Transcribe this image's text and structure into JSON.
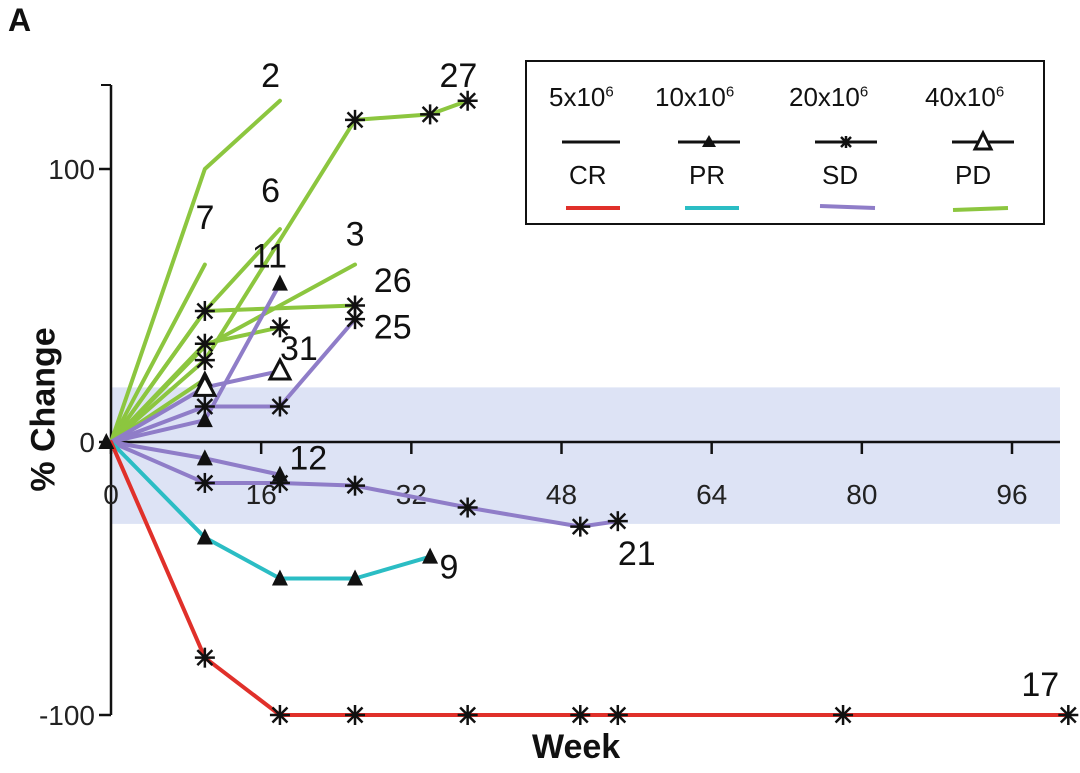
{
  "panel_label": "A",
  "legend": {
    "doses": [
      {
        "base": "5x10",
        "exp": "6",
        "marker": "none"
      },
      {
        "base": "10x10",
        "exp": "6",
        "marker": "triangle"
      },
      {
        "base": "20x10",
        "exp": "6",
        "marker": "asterisk"
      },
      {
        "base": "40x10",
        "exp": "6",
        "marker": "open-triangle"
      }
    ],
    "responses": [
      {
        "label": "CR",
        "color": "#e0302a"
      },
      {
        "label": "PR",
        "color": "#2bbdc4"
      },
      {
        "label": "SD",
        "color": "#8f7dc8"
      },
      {
        "label": "PD",
        "color": "#8cc63f"
      }
    ]
  },
  "chart_data": {
    "type": "line",
    "title": "",
    "xlabel": "Week",
    "ylabel": "% Change",
    "xlim": [
      -2,
      100
    ],
    "ylim": [
      -100,
      130
    ],
    "x_ticks": [
      0,
      16,
      32,
      48,
      64,
      80,
      96
    ],
    "x_tick_labels": [
      "0",
      "16",
      "32",
      "48",
      "64",
      "80",
      "96"
    ],
    "y_ticks": [
      -100,
      0,
      100
    ],
    "y_tick_labels": [
      "-100",
      "0",
      "100"
    ],
    "shaded_band": {
      "y_min": -30,
      "y_max": 20
    },
    "series": [
      {
        "id": "2",
        "response": "PD",
        "marker": "none",
        "points": [
          [
            0,
            0
          ],
          [
            10,
            100
          ],
          [
            18,
            125
          ]
        ],
        "label": "2",
        "label_at": [
          16,
          130
        ]
      },
      {
        "id": "7",
        "response": "PD",
        "marker": "none",
        "points": [
          [
            0,
            0
          ],
          [
            10,
            65
          ]
        ],
        "label": "7",
        "label_at": [
          9,
          78
        ]
      },
      {
        "id": "6",
        "response": "PD",
        "marker": "none",
        "points": [
          [
            0,
            0
          ],
          [
            10,
            48
          ],
          [
            18,
            78
          ]
        ],
        "label": "6",
        "label_at": [
          16,
          88
        ]
      },
      {
        "id": "27",
        "response": "PD",
        "marker": "asterisk",
        "points": [
          [
            0,
            0
          ],
          [
            10,
            30
          ],
          [
            26,
            118
          ],
          [
            34,
            120
          ],
          [
            38,
            125
          ]
        ],
        "label": "27",
        "label_at": [
          35,
          130
        ]
      },
      {
        "id": "3",
        "response": "PD",
        "marker": "none",
        "points": [
          [
            0,
            0
          ],
          [
            10,
            35
          ],
          [
            26,
            65
          ]
        ],
        "label": "3",
        "label_at": [
          25,
          72
        ]
      },
      {
        "id": "26",
        "response": "PD",
        "marker": "asterisk",
        "points": [
          [
            0,
            0
          ],
          [
            10,
            48
          ],
          [
            26,
            50
          ]
        ],
        "label": "26",
        "label_at": [
          28,
          55
        ]
      },
      {
        "id": "25",
        "response": "PD",
        "marker": "asterisk",
        "points": [
          [
            0,
            0
          ],
          [
            10,
            36
          ],
          [
            18,
            42
          ]
        ],
        "label": "25",
        "label_at": [
          28,
          38
        ]
      },
      {
        "id": "11",
        "response": "PD",
        "marker": "triangle",
        "points": [
          [
            0,
            0
          ],
          [
            10,
            23
          ]
        ],
        "label": "11",
        "label_at": [
          15,
          64
        ]
      },
      {
        "id": "11b",
        "response": "SD",
        "marker": "triangle",
        "points": [
          [
            0,
            0
          ],
          [
            10,
            8
          ],
          [
            18,
            58
          ]
        ],
        "label": "",
        "label_at": null
      },
      {
        "id": "31",
        "response": "SD",
        "marker": "open-triangle",
        "points": [
          [
            0,
            0
          ],
          [
            10,
            20
          ],
          [
            18,
            26
          ]
        ],
        "label": "31",
        "label_at": [
          18,
          30
        ]
      },
      {
        "id": "s1",
        "response": "SD",
        "marker": "asterisk",
        "points": [
          [
            0,
            0
          ],
          [
            10,
            13
          ],
          [
            18,
            13
          ],
          [
            26,
            45
          ]
        ],
        "label": "",
        "label_at": null
      },
      {
        "id": "12",
        "response": "SD",
        "marker": "triangle",
        "points": [
          [
            0,
            0
          ],
          [
            10,
            -6
          ],
          [
            18,
            -12
          ]
        ],
        "label": "12",
        "label_at": [
          19,
          -10
        ]
      },
      {
        "id": "21",
        "response": "SD",
        "marker": "asterisk",
        "points": [
          [
            0,
            0
          ],
          [
            10,
            -15
          ],
          [
            18,
            -15
          ],
          [
            26,
            -16
          ],
          [
            38,
            -24
          ],
          [
            50,
            -31
          ],
          [
            54,
            -29
          ]
        ],
        "label": "21",
        "label_at": [
          54,
          -45
        ]
      },
      {
        "id": "9",
        "response": "PR",
        "marker": "triangle",
        "points": [
          [
            0,
            0
          ],
          [
            10,
            -35
          ],
          [
            18,
            -50
          ],
          [
            26,
            -50
          ],
          [
            34,
            -42
          ]
        ],
        "label": "9",
        "label_at": [
          35,
          -50
        ]
      },
      {
        "id": "17",
        "response": "CR",
        "marker": "asterisk",
        "points": [
          [
            0,
            0
          ],
          [
            10,
            -79
          ],
          [
            18,
            -100
          ],
          [
            26,
            -100
          ],
          [
            38,
            -100
          ],
          [
            50,
            -100
          ],
          [
            54,
            -100
          ],
          [
            78,
            -100
          ],
          [
            102,
            -100
          ]
        ],
        "label": "17",
        "label_at": [
          97,
          -93
        ]
      }
    ]
  }
}
